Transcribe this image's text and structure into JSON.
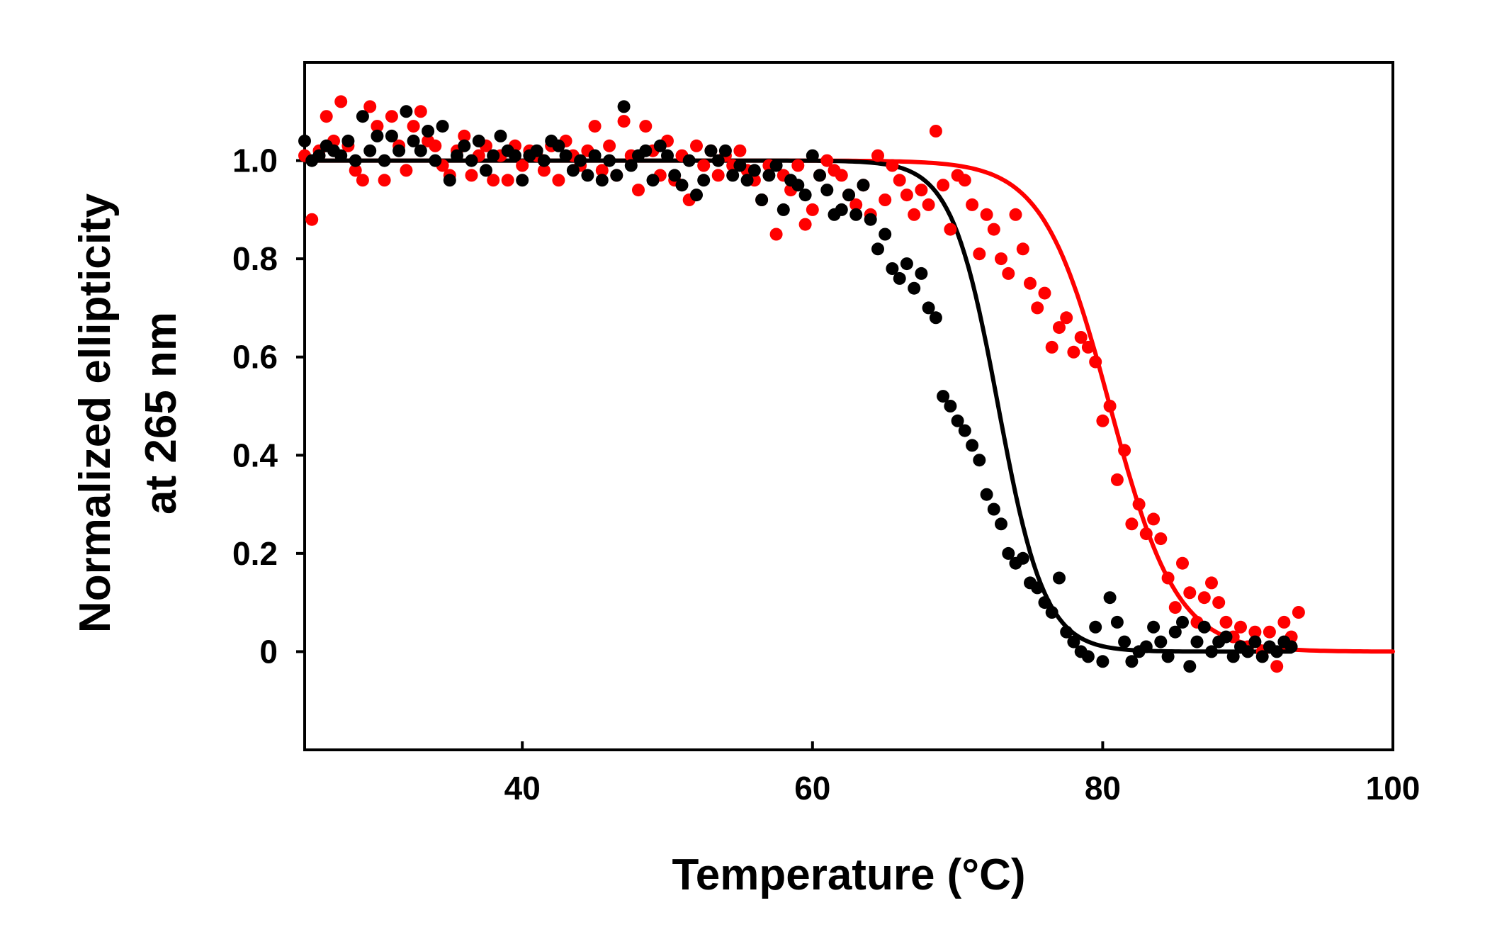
{
  "chart_data": {
    "type": "scatter",
    "xlabel": "Temperature (°C)",
    "ylabel_lines": [
      "Normalized ellipticity",
      "at 265 nm"
    ],
    "xlim": [
      25,
      100
    ],
    "ylim": [
      -0.2,
      1.2
    ],
    "x_ticks": [
      40,
      60,
      80,
      100
    ],
    "x_tick_labels": [
      "40",
      "60",
      "80",
      "100"
    ],
    "y_ticks": [
      0,
      0.2,
      0.4,
      0.6,
      0.8,
      1.0
    ],
    "y_tick_labels": [
      "0",
      "0.2",
      "0.4",
      "0.6",
      "0.8",
      "1.0"
    ],
    "grid": false,
    "series": [
      {
        "name": "red",
        "color": "#ff0000",
        "fit": {
          "model": "sigmoid",
          "top": 1.0,
          "bottom": 0.0,
          "tm": 80.5,
          "slope": 2.3,
          "x_start": 25,
          "x_end": 100
        },
        "points": [
          [
            25.0,
            1.01
          ],
          [
            25.5,
            0.88
          ],
          [
            26.0,
            1.02
          ],
          [
            26.5,
            1.09
          ],
          [
            27.0,
            1.04
          ],
          [
            27.5,
            1.12
          ],
          [
            28.0,
            1.03
          ],
          [
            28.5,
            0.98
          ],
          [
            29.0,
            0.96
          ],
          [
            29.5,
            1.11
          ],
          [
            30.0,
            1.07
          ],
          [
            30.5,
            0.96
          ],
          [
            31.0,
            1.09
          ],
          [
            31.5,
            1.03
          ],
          [
            32.0,
            0.98
          ],
          [
            32.5,
            1.07
          ],
          [
            33.0,
            1.1
          ],
          [
            33.5,
            1.04
          ],
          [
            34.0,
            1.03
          ],
          [
            34.5,
            0.99
          ],
          [
            35.0,
            0.97
          ],
          [
            35.5,
            1.02
          ],
          [
            36.0,
            1.05
          ],
          [
            36.5,
            0.97
          ],
          [
            37.0,
            1.01
          ],
          [
            37.5,
            1.03
          ],
          [
            38.0,
            0.96
          ],
          [
            38.5,
            1.01
          ],
          [
            39.0,
            0.96
          ],
          [
            39.5,
            1.03
          ],
          [
            40.0,
            0.99
          ],
          [
            40.5,
            1.02
          ],
          [
            41.0,
            1.01
          ],
          [
            41.5,
            0.98
          ],
          [
            42.0,
            1.03
          ],
          [
            42.5,
            0.96
          ],
          [
            43.0,
            1.04
          ],
          [
            43.5,
            1.01
          ],
          [
            44.0,
            0.99
          ],
          [
            44.5,
            1.02
          ],
          [
            45.0,
            1.07
          ],
          [
            45.5,
            0.98
          ],
          [
            46.0,
            1.03
          ],
          [
            46.5,
            0.97
          ],
          [
            47.0,
            1.08
          ],
          [
            47.5,
            1.01
          ],
          [
            48.0,
            0.94
          ],
          [
            48.5,
            1.07
          ],
          [
            49.0,
            1.02
          ],
          [
            49.5,
            0.97
          ],
          [
            50.0,
            1.04
          ],
          [
            50.5,
            0.96
          ],
          [
            51.0,
            1.01
          ],
          [
            51.5,
            0.92
          ],
          [
            52.0,
            1.03
          ],
          [
            52.5,
            0.99
          ],
          [
            53.0,
            1.02
          ],
          [
            53.5,
            0.97
          ],
          [
            54.0,
            1.01
          ],
          [
            54.5,
            0.99
          ],
          [
            55.0,
            1.02
          ],
          [
            55.5,
            0.98
          ],
          [
            56.0,
            0.96
          ],
          [
            56.5,
            0.92
          ],
          [
            57.0,
            0.99
          ],
          [
            57.5,
            0.85
          ],
          [
            58.0,
            0.97
          ],
          [
            58.5,
            0.94
          ],
          [
            59.0,
            0.99
          ],
          [
            59.5,
            0.87
          ],
          [
            60.0,
            0.9
          ],
          [
            60.5,
            0.97
          ],
          [
            61.0,
            1.0
          ],
          [
            61.5,
            0.98
          ],
          [
            62.0,
            0.97
          ],
          [
            62.5,
            0.93
          ],
          [
            63.0,
            0.91
          ],
          [
            63.5,
            0.95
          ],
          [
            64.0,
            0.89
          ],
          [
            64.5,
            1.01
          ],
          [
            65.0,
            0.92
          ],
          [
            65.5,
            0.99
          ],
          [
            66.0,
            0.96
          ],
          [
            66.5,
            0.93
          ],
          [
            67.0,
            0.89
          ],
          [
            67.5,
            0.94
          ],
          [
            68.0,
            0.91
          ],
          [
            68.5,
            1.06
          ],
          [
            69.0,
            0.95
          ],
          [
            69.5,
            0.86
          ],
          [
            70.0,
            0.97
          ],
          [
            70.5,
            0.96
          ],
          [
            71.0,
            0.91
          ],
          [
            71.5,
            0.81
          ],
          [
            72.0,
            0.89
          ],
          [
            72.5,
            0.86
          ],
          [
            73.0,
            0.8
          ],
          [
            73.5,
            0.77
          ],
          [
            74.0,
            0.89
          ],
          [
            74.5,
            0.82
          ],
          [
            75.0,
            0.75
          ],
          [
            75.5,
            0.7
          ],
          [
            76.0,
            0.73
          ],
          [
            76.5,
            0.62
          ],
          [
            77.0,
            0.66
          ],
          [
            77.5,
            0.68
          ],
          [
            78.0,
            0.61
          ],
          [
            78.5,
            0.64
          ],
          [
            79.0,
            0.62
          ],
          [
            79.5,
            0.59
          ],
          [
            80.0,
            0.47
          ],
          [
            80.5,
            0.5
          ],
          [
            81.0,
            0.35
          ],
          [
            81.5,
            0.41
          ],
          [
            82.0,
            0.26
          ],
          [
            82.5,
            0.3
          ],
          [
            83.0,
            0.24
          ],
          [
            83.5,
            0.27
          ],
          [
            84.0,
            0.23
          ],
          [
            84.5,
            0.15
          ],
          [
            85.0,
            0.09
          ],
          [
            85.5,
            0.18
          ],
          [
            86.0,
            0.12
          ],
          [
            86.5,
            0.06
          ],
          [
            87.0,
            0.11
          ],
          [
            87.5,
            0.14
          ],
          [
            88.0,
            0.1
          ],
          [
            88.5,
            0.06
          ],
          [
            89.0,
            0.03
          ],
          [
            89.5,
            0.05
          ],
          [
            90.0,
            0.01
          ],
          [
            90.5,
            0.04
          ],
          [
            91.0,
            0.0
          ],
          [
            91.5,
            0.04
          ],
          [
            92.0,
            -0.03
          ],
          [
            92.5,
            0.06
          ],
          [
            93.0,
            0.03
          ],
          [
            93.5,
            0.08
          ]
        ]
      },
      {
        "name": "black",
        "color": "#000000",
        "fit": {
          "model": "sigmoid",
          "top": 1.0,
          "bottom": 0.0,
          "tm": 72.8,
          "slope": 1.6,
          "x_start": 25,
          "x_end": 93
        },
        "points": [
          [
            25.0,
            1.04
          ],
          [
            25.5,
            1.0
          ],
          [
            26.0,
            1.01
          ],
          [
            26.5,
            1.03
          ],
          [
            27.0,
            1.02
          ],
          [
            27.5,
            1.01
          ],
          [
            28.0,
            1.04
          ],
          [
            28.5,
            1.0
          ],
          [
            29.0,
            1.09
          ],
          [
            29.5,
            1.02
          ],
          [
            30.0,
            1.05
          ],
          [
            30.5,
            1.0
          ],
          [
            31.0,
            1.05
          ],
          [
            31.5,
            1.02
          ],
          [
            32.0,
            1.1
          ],
          [
            32.5,
            1.04
          ],
          [
            33.0,
            1.02
          ],
          [
            33.5,
            1.06
          ],
          [
            34.0,
            1.0
          ],
          [
            34.5,
            1.07
          ],
          [
            35.0,
            0.96
          ],
          [
            35.5,
            1.01
          ],
          [
            36.0,
            1.03
          ],
          [
            36.5,
            1.0
          ],
          [
            37.0,
            1.04
          ],
          [
            37.5,
            0.98
          ],
          [
            38.0,
            1.01
          ],
          [
            38.5,
            1.05
          ],
          [
            39.0,
            1.02
          ],
          [
            39.5,
            1.01
          ],
          [
            40.0,
            0.96
          ],
          [
            40.5,
            1.01
          ],
          [
            41.0,
            1.02
          ],
          [
            41.5,
            1.0
          ],
          [
            42.0,
            1.04
          ],
          [
            42.5,
            1.03
          ],
          [
            43.0,
            1.01
          ],
          [
            43.5,
            0.98
          ],
          [
            44.0,
            1.0
          ],
          [
            44.5,
            0.97
          ],
          [
            45.0,
            1.01
          ],
          [
            45.5,
            0.96
          ],
          [
            46.0,
            1.0
          ],
          [
            46.5,
            0.97
          ],
          [
            47.0,
            1.11
          ],
          [
            47.5,
            0.99
          ],
          [
            48.0,
            1.01
          ],
          [
            48.5,
            1.02
          ],
          [
            49.0,
            0.96
          ],
          [
            49.5,
            1.03
          ],
          [
            50.0,
            1.01
          ],
          [
            50.5,
            0.97
          ],
          [
            51.0,
            0.95
          ],
          [
            51.5,
            1.0
          ],
          [
            52.0,
            0.93
          ],
          [
            52.5,
            0.96
          ],
          [
            53.0,
            1.02
          ],
          [
            53.5,
            1.0
          ],
          [
            54.0,
            1.02
          ],
          [
            54.5,
            0.97
          ],
          [
            55.0,
            0.99
          ],
          [
            55.5,
            0.96
          ],
          [
            56.0,
            0.98
          ],
          [
            56.5,
            0.92
          ],
          [
            57.0,
            0.97
          ],
          [
            57.5,
            0.99
          ],
          [
            58.0,
            0.9
          ],
          [
            58.5,
            0.96
          ],
          [
            59.0,
            0.95
          ],
          [
            59.5,
            0.93
          ],
          [
            60.0,
            1.01
          ],
          [
            60.5,
            0.97
          ],
          [
            61.0,
            0.94
          ],
          [
            61.5,
            0.89
          ],
          [
            62.0,
            0.9
          ],
          [
            62.5,
            0.93
          ],
          [
            63.0,
            0.89
          ],
          [
            63.5,
            0.95
          ],
          [
            64.0,
            0.88
          ],
          [
            64.5,
            0.82
          ],
          [
            65.0,
            0.85
          ],
          [
            65.5,
            0.78
          ],
          [
            66.0,
            0.76
          ],
          [
            66.5,
            0.79
          ],
          [
            67.0,
            0.74
          ],
          [
            67.5,
            0.77
          ],
          [
            68.0,
            0.7
          ],
          [
            68.5,
            0.68
          ],
          [
            69.0,
            0.52
          ],
          [
            69.5,
            0.5
          ],
          [
            70.0,
            0.47
          ],
          [
            70.5,
            0.45
          ],
          [
            71.0,
            0.42
          ],
          [
            71.5,
            0.39
          ],
          [
            72.0,
            0.32
          ],
          [
            72.5,
            0.29
          ],
          [
            73.0,
            0.26
          ],
          [
            73.5,
            0.2
          ],
          [
            74.0,
            0.18
          ],
          [
            74.5,
            0.19
          ],
          [
            75.0,
            0.14
          ],
          [
            75.5,
            0.13
          ],
          [
            76.0,
            0.1
          ],
          [
            76.5,
            0.08
          ],
          [
            77.0,
            0.15
          ],
          [
            77.5,
            0.04
          ],
          [
            78.0,
            0.02
          ],
          [
            78.5,
            0.0
          ],
          [
            79.0,
            -0.01
          ],
          [
            79.5,
            0.05
          ],
          [
            80.0,
            -0.02
          ],
          [
            80.5,
            0.11
          ],
          [
            81.0,
            0.06
          ],
          [
            81.5,
            0.02
          ],
          [
            82.0,
            -0.02
          ],
          [
            82.5,
            0.0
          ],
          [
            83.0,
            0.01
          ],
          [
            83.5,
            0.05
          ],
          [
            84.0,
            0.02
          ],
          [
            84.5,
            -0.01
          ],
          [
            85.0,
            0.04
          ],
          [
            85.5,
            0.06
          ],
          [
            86.0,
            -0.03
          ],
          [
            86.5,
            0.02
          ],
          [
            87.0,
            0.05
          ],
          [
            87.5,
            0.0
          ],
          [
            88.0,
            0.02
          ],
          [
            88.5,
            0.03
          ],
          [
            89.0,
            -0.01
          ],
          [
            89.5,
            0.01
          ],
          [
            90.0,
            0.0
          ],
          [
            90.5,
            0.02
          ],
          [
            91.0,
            -0.01
          ],
          [
            91.5,
            0.01
          ],
          [
            92.0,
            0.0
          ],
          [
            92.5,
            0.02
          ],
          [
            93.0,
            0.01
          ]
        ]
      }
    ]
  }
}
